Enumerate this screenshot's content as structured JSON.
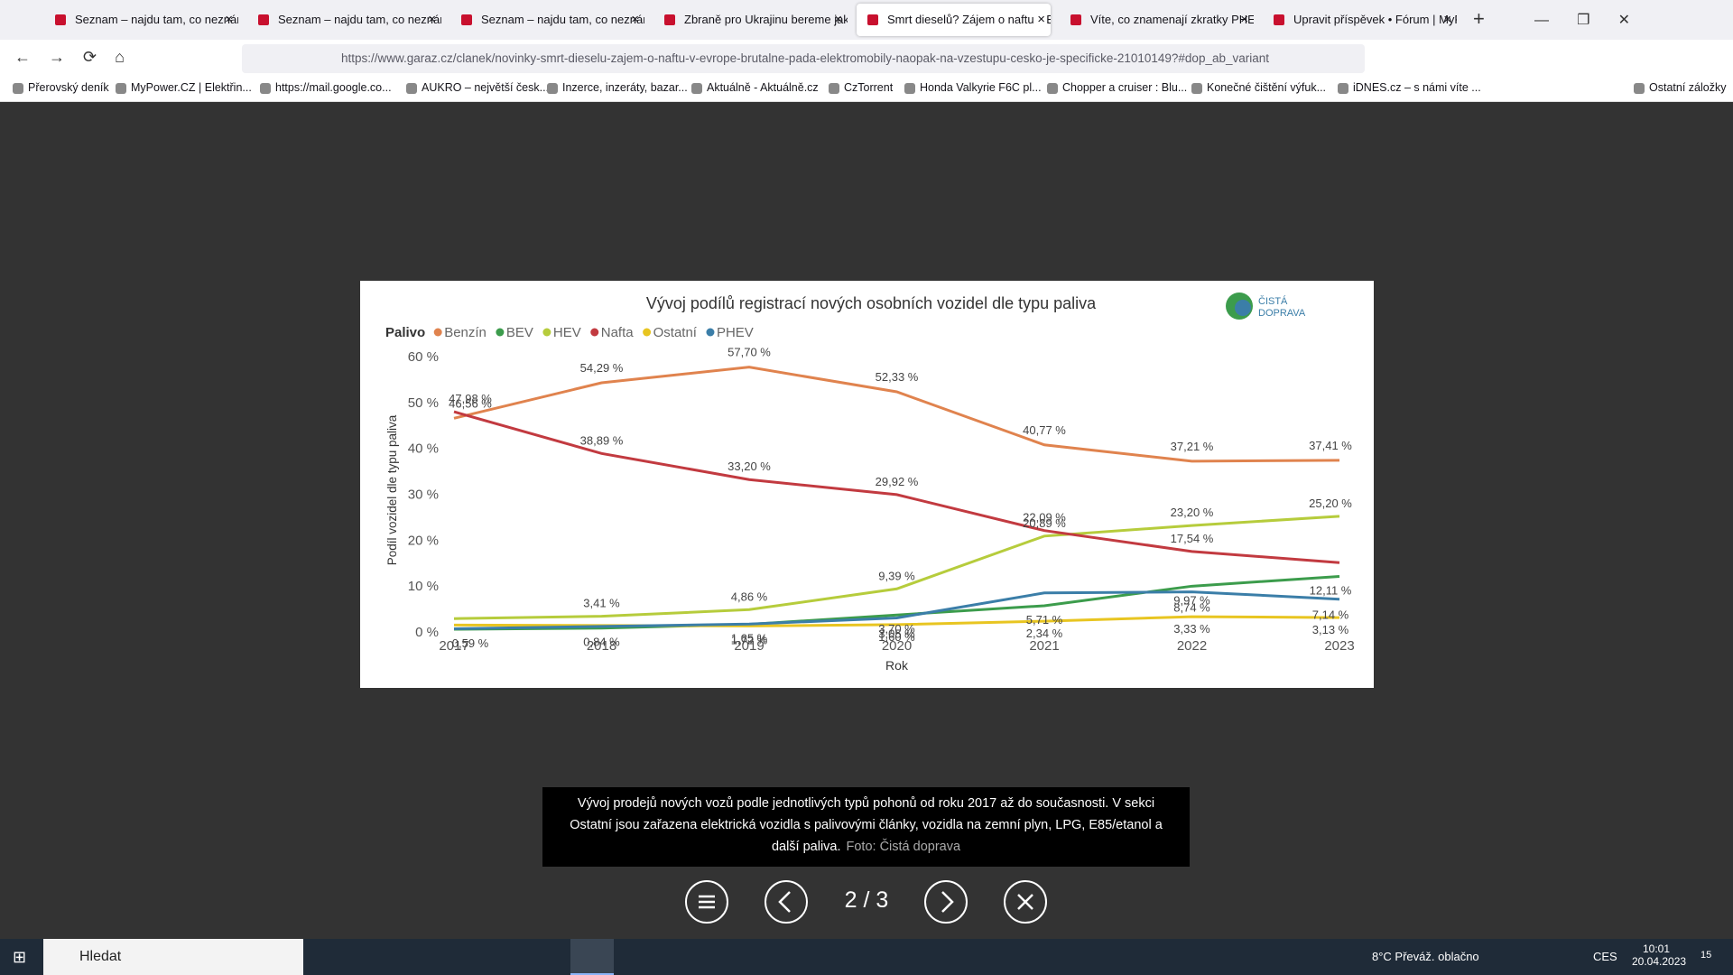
{
  "browser": {
    "tabs": [
      "Seznam – najdu tam, co neznám",
      "Seznam – najdu tam, co neznám",
      "Seznam – najdu tam, co neznám",
      "Zbraně pro Ukrajinu bereme jako",
      "Smrt dieselů? Zájem o naftu v Evropě",
      "Víte, co znamenají zkratky PHEV",
      "Upravit příspěvek • Fórum | MyPower"
    ],
    "active_tab": 4,
    "url": "https://www.garaz.cz/clanek/novinky-smrt-dieselu-zajem-o-naftu-v-evrope-brutalne-pada-elektromobily-naopak-na-vzestupu-cesko-je-specificke-21010149?#dop_ab_variant",
    "bookmarks": [
      "Přerovský deník",
      "MyPower.CZ | Elektřin...",
      "https://mail.google.co...",
      "AUKRO – největší česk...",
      "Inzerce, inzeráty, bazar...",
      "Aktuálně - Aktuálně.cz",
      "CzTorrent",
      "Honda Valkyrie F6C pl...",
      "Chopper a cruiser : Blu...",
      "Konečné čištění výfuk...",
      "iDNES.cz – s námi víte ..."
    ],
    "other_bookmarks": "Ostatní záložky"
  },
  "chart_data": {
    "type": "line",
    "title": "Vývoj podílů registrací nových osobních vozidel dle typu paliva",
    "logo": [
      "ČISTÁ",
      "DOPRAVA"
    ],
    "legend_title": "Palivo",
    "x_label": "Rok",
    "y_label": "Podíl vozidel dle typu paliva",
    "categories": [
      "2017",
      "2018",
      "2019",
      "2020",
      "2021",
      "2022",
      "2023"
    ],
    "ylim": [
      0,
      60
    ],
    "yticks": [
      {
        "value": 0,
        "label": "0 %"
      },
      {
        "value": 10,
        "label": "10 %"
      },
      {
        "value": 20,
        "label": "20 %"
      },
      {
        "value": 30,
        "label": "30 %"
      },
      {
        "value": 40,
        "label": "40 %"
      },
      {
        "value": 50,
        "label": "50 %"
      },
      {
        "value": 60,
        "label": "60 %"
      }
    ],
    "grid": false,
    "series": [
      {
        "name": "Benzín",
        "color": "#e0834e",
        "values": [
          46.56,
          54.29,
          57.7,
          52.33,
          40.77,
          37.21,
          37.41
        ],
        "value_labels": [
          "46,56 %",
          "54,29 %",
          "57,70 %",
          "52,33 %",
          "40,77 %",
          "37,21 %",
          "37,41 %"
        ]
      },
      {
        "name": "BEV",
        "color": "#3c9c4c",
        "values": [
          0.59,
          0.84,
          1.65,
          3.7,
          5.71,
          9.97,
          12.11
        ],
        "value_labels": [
          "0,59 %",
          "0,84 %",
          "1,65 %",
          "3,70 %",
          "5,71 %",
          "9,97 %",
          "12,11 %"
        ]
      },
      {
        "name": "HEV",
        "color": "#b6cc3c",
        "values": [
          2.9,
          3.41,
          4.86,
          9.39,
          20.89,
          23.2,
          25.2
        ],
        "value_labels": [
          null,
          "3,41 %",
          "4,86 %",
          "9,39 %",
          "20,89 %",
          "23,20 %",
          "25,20 %"
        ]
      },
      {
        "name": "Nafta",
        "color": "#c23a40",
        "values": [
          47.98,
          38.89,
          33.2,
          29.92,
          22.09,
          17.54,
          15.1
        ],
        "value_labels": [
          "47,98 %",
          "38,89 %",
          "33,20 %",
          "29,92 %",
          "22,09 %",
          "17,54 %",
          null
        ]
      },
      {
        "name": "Ostatní",
        "color": "#e8c521",
        "values": [
          1.5,
          1.4,
          1.3,
          1.6,
          2.34,
          3.33,
          3.13
        ],
        "value_labels": [
          null,
          null,
          null,
          "1,60 %",
          "2,34 %",
          "3,33 %",
          "3,13 %"
        ]
      },
      {
        "name": "PHEV",
        "color": "#3b7ea8",
        "values": [
          0.7,
          1.2,
          1.72,
          3.05,
          8.5,
          8.74,
          7.14
        ],
        "value_labels": [
          null,
          null,
          "1,72 %",
          "3,05 %",
          null,
          "8,74 %",
          "7,14 %"
        ]
      }
    ]
  },
  "viewer": {
    "caption": "Vývoj prodejů nových vozů podle jednotlivých typů pohonů od roku 2017 až do současnosti. V sekci Ostatní jsou zařazena elektrická vozidla s palivovými články, vozidla na zemní plyn, LPG, E85/etanol a další paliva.",
    "credit": "Foto: Čistá doprava",
    "counter": "2 / 3"
  },
  "taskbar": {
    "search": "Hledat",
    "weather": "8°C  Převáž. oblačno",
    "language": "CES",
    "time": "10:01",
    "date": "20.04.2023",
    "notifications": "15"
  }
}
